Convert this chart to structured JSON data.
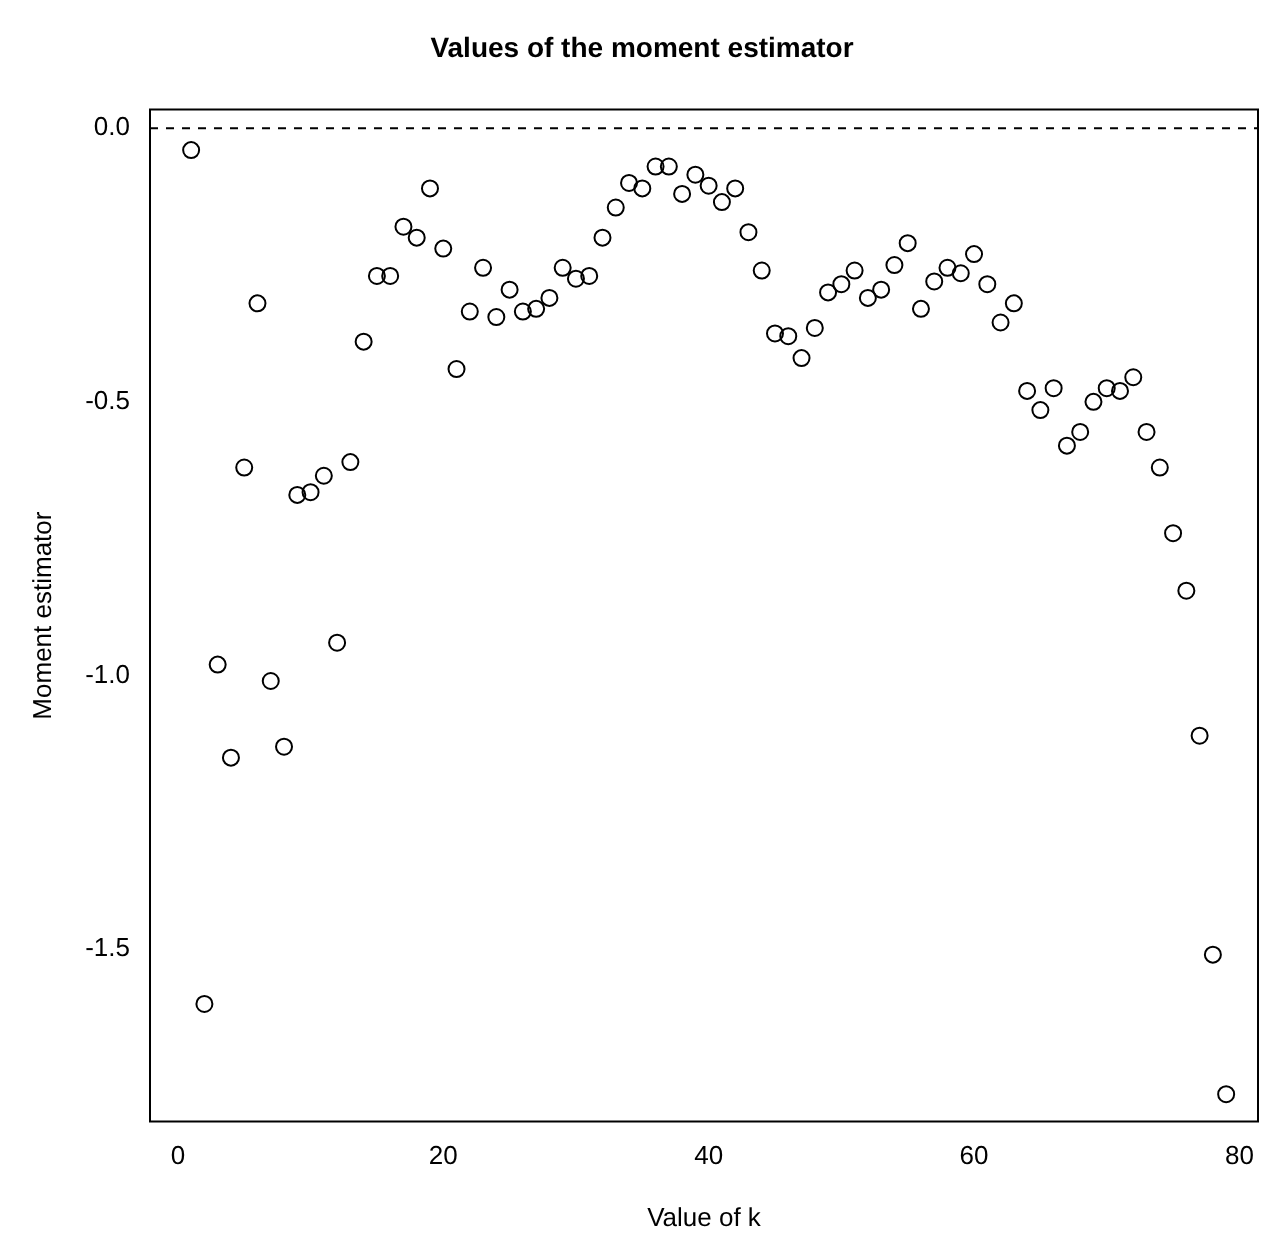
{
  "chart_data": {
    "type": "scatter",
    "title": "Values of the moment estimator",
    "xlabel": "Value of k",
    "ylabel": "Moment estimator",
    "x": [
      1,
      2,
      3,
      4,
      5,
      6,
      7,
      8,
      9,
      10,
      11,
      12,
      13,
      14,
      15,
      16,
      17,
      18,
      19,
      20,
      21,
      22,
      23,
      24,
      25,
      26,
      27,
      28,
      29,
      30,
      31,
      32,
      33,
      34,
      35,
      36,
      37,
      38,
      39,
      40,
      41,
      42,
      43,
      44,
      45,
      46,
      47,
      48,
      49,
      50,
      51,
      52,
      53,
      54,
      55,
      56,
      57,
      58,
      59,
      60,
      61,
      62,
      63,
      64,
      65,
      66,
      67,
      68,
      69,
      70,
      71,
      72,
      73,
      74,
      75,
      76,
      77,
      78,
      79
    ],
    "series": [
      {
        "color": "#000000",
        "values": [
          -0.04,
          -1.6,
          -0.98,
          -1.15,
          -0.62,
          -0.32,
          -1.01,
          -1.13,
          -0.67,
          -0.665,
          -0.635,
          -0.94,
          -0.61,
          -0.39,
          -0.27,
          -0.27,
          -0.18,
          -0.2,
          -0.11,
          -0.22,
          -0.44,
          -0.335,
          -0.255,
          -0.345,
          -0.295,
          -0.335,
          -0.33,
          -0.31,
          -0.255,
          -0.275,
          -0.27,
          -0.2,
          -0.145,
          -0.1,
          -0.11,
          -0.07,
          -0.07,
          -0.12,
          -0.085,
          -0.105,
          -0.135,
          -0.11,
          -0.19,
          -0.26,
          -0.375,
          -0.38,
          -0.42,
          -0.365,
          -0.3,
          -0.285,
          -0.26,
          -0.31,
          -0.295,
          -0.25,
          -0.21,
          -0.33,
          -0.28,
          -0.255,
          -0.265,
          -0.23,
          -0.285,
          -0.355,
          -0.32,
          -0.48,
          -0.515,
          -0.475,
          -0.58,
          -0.555,
          -0.5,
          -0.475,
          -0.48,
          -0.455,
          -0.555,
          -0.62,
          -0.74,
          -0.845,
          -1.11,
          -1.51,
          -1.765
        ]
      }
    ],
    "xlim": [
      -2.1,
      81.4
    ],
    "xticks": [
      0,
      20,
      40,
      60,
      80
    ],
    "ylim": [
      -1.815,
      0.034
    ],
    "yticks": [
      {
        "value": 0,
        "label": "0.0"
      },
      -0.5,
      {
        "value": -1,
        "label": "-1.0"
      },
      -1.5
    ],
    "ref_lines": [
      {
        "axis": "y",
        "value": 0,
        "color": "#000000",
        "line_style": "dashed"
      }
    ],
    "marker": "circle",
    "grid": false,
    "legend": false
  }
}
